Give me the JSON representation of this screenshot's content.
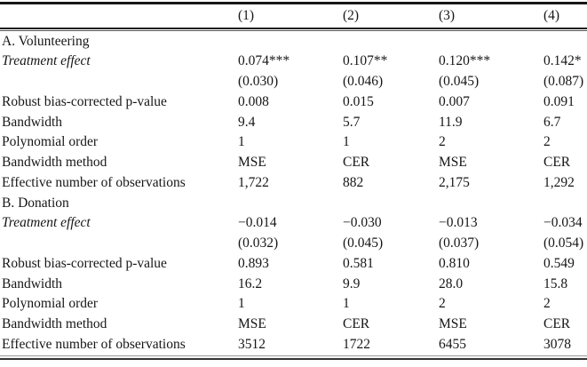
{
  "table": {
    "columns": [
      "(1)",
      "(2)",
      "(3)",
      "(4)"
    ],
    "panels": [
      {
        "title": "A. Volunteering",
        "rows": [
          {
            "label": "Treatment effect",
            "italic": true,
            "values": [
              "0.074***",
              "0.107**",
              "0.120***",
              "0.142*"
            ]
          },
          {
            "label": "",
            "italic": false,
            "values": [
              "(0.030)",
              "(0.046)",
              "(0.045)",
              "(0.087)"
            ]
          },
          {
            "label": "Robust bias-corrected p-value",
            "italic": false,
            "values": [
              "0.008",
              "0.015",
              "0.007",
              "0.091"
            ]
          },
          {
            "label": "Bandwidth",
            "italic": false,
            "values": [
              "9.4",
              "5.7",
              "11.9",
              "6.7"
            ]
          },
          {
            "label": "Polynomial order",
            "italic": false,
            "values": [
              "1",
              "1",
              "2",
              "2"
            ]
          },
          {
            "label": "Bandwidth method",
            "italic": false,
            "values": [
              "MSE",
              "CER",
              "MSE",
              "CER"
            ]
          },
          {
            "label": "Effective number of observations",
            "italic": false,
            "values": [
              "1,722",
              "882",
              "2,175",
              "1,292"
            ]
          }
        ]
      },
      {
        "title": "B. Donation",
        "rows": [
          {
            "label": "Treatment effect",
            "italic": true,
            "values": [
              "−0.014",
              "−0.030",
              "−0.013",
              "−0.034"
            ]
          },
          {
            "label": "",
            "italic": false,
            "values": [
              "(0.032)",
              "(0.045)",
              "(0.037)",
              "(0.054)"
            ]
          },
          {
            "label": "Robust bias-corrected p-value",
            "italic": false,
            "values": [
              "0.893",
              "0.581",
              "0.810",
              "0.549"
            ]
          },
          {
            "label": "Bandwidth",
            "italic": false,
            "values": [
              "16.2",
              "9.9",
              "28.0",
              "15.8"
            ]
          },
          {
            "label": "Polynomial order",
            "italic": false,
            "values": [
              "1",
              "1",
              "2",
              "2"
            ]
          },
          {
            "label": "Bandwidth method",
            "italic": false,
            "values": [
              "MSE",
              "CER",
              "MSE",
              "CER"
            ]
          },
          {
            "label": "Effective number of observations",
            "italic": false,
            "values": [
              "3512",
              "1722",
              "6455",
              "3078"
            ]
          }
        ]
      }
    ]
  }
}
